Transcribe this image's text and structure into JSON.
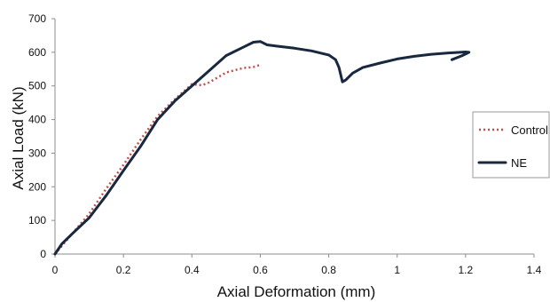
{
  "chart_data": {
    "type": "line",
    "title": "",
    "xlabel": "Axial Deformation (mm)",
    "ylabel": "Axial Load (kN)",
    "xlim": [
      0,
      1.4
    ],
    "ylim": [
      0,
      700
    ],
    "x_ticks": [
      "0",
      "0.2",
      "0.4",
      "0.6",
      "0.8",
      "1",
      "1.2",
      "1.4"
    ],
    "y_ticks": [
      "0",
      "100",
      "200",
      "300",
      "400",
      "500",
      "600",
      "700"
    ],
    "grid": false,
    "legend_position": "right",
    "series": [
      {
        "name": "Control",
        "color": "#c0504d",
        "style": "dotted",
        "points": [
          [
            0,
            0
          ],
          [
            0.05,
            60
          ],
          [
            0.1,
            120
          ],
          [
            0.15,
            195
          ],
          [
            0.2,
            265
          ],
          [
            0.25,
            340
          ],
          [
            0.3,
            410
          ],
          [
            0.35,
            460
          ],
          [
            0.4,
            505
          ],
          [
            0.43,
            502
          ],
          [
            0.45,
            510
          ],
          [
            0.5,
            540
          ],
          [
            0.55,
            553
          ],
          [
            0.58,
            556
          ],
          [
            0.6,
            563
          ]
        ]
      },
      {
        "name": "NE",
        "color": "#17283f",
        "style": "solid",
        "points": [
          [
            0,
            0
          ],
          [
            0.02,
            30
          ],
          [
            0.05,
            60
          ],
          [
            0.1,
            108
          ],
          [
            0.15,
            175
          ],
          [
            0.2,
            248
          ],
          [
            0.25,
            320
          ],
          [
            0.3,
            400
          ],
          [
            0.35,
            455
          ],
          [
            0.4,
            500
          ],
          [
            0.45,
            545
          ],
          [
            0.5,
            590
          ],
          [
            0.55,
            615
          ],
          [
            0.58,
            630
          ],
          [
            0.6,
            632
          ],
          [
            0.62,
            622
          ],
          [
            0.65,
            618
          ],
          [
            0.7,
            612
          ],
          [
            0.75,
            604
          ],
          [
            0.8,
            592
          ],
          [
            0.82,
            578
          ],
          [
            0.83,
            555
          ],
          [
            0.84,
            512
          ],
          [
            0.85,
            518
          ],
          [
            0.87,
            538
          ],
          [
            0.9,
            555
          ],
          [
            0.95,
            568
          ],
          [
            1.0,
            580
          ],
          [
            1.05,
            588
          ],
          [
            1.1,
            594
          ],
          [
            1.15,
            598
          ],
          [
            1.2,
            601
          ],
          [
            1.21,
            600
          ],
          [
            1.19,
            590
          ],
          [
            1.16,
            578
          ]
        ]
      }
    ]
  }
}
